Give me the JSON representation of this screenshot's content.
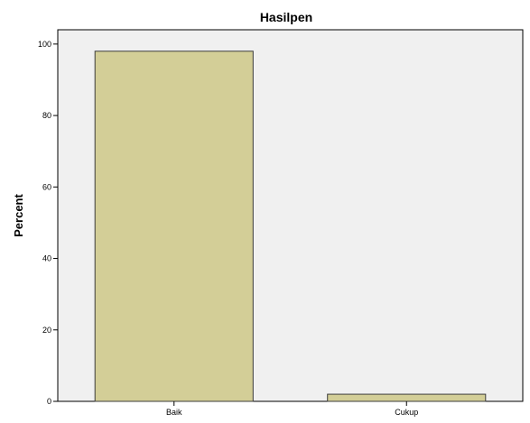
{
  "chart_data": {
    "type": "bar",
    "title": "Hasilpen",
    "xlabel": "",
    "ylabel": "Percent",
    "categories": [
      "Baik",
      "Cukup"
    ],
    "values": [
      98,
      2
    ],
    "ylim": [
      0,
      104
    ],
    "yticks": [
      "0",
      "20",
      "40",
      "60",
      "80",
      "100"
    ],
    "grid": false,
    "legend": "none",
    "colors": {
      "plot_background": "#f0f0f0",
      "bar_fill": "#d3ce97",
      "bar_stroke": "#3c3c3c",
      "axis": "#000000"
    }
  }
}
